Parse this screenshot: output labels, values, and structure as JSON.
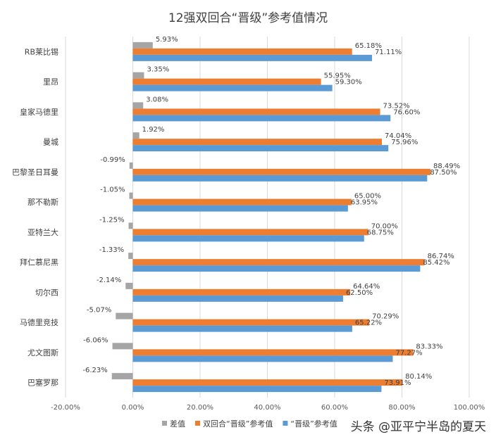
{
  "chart_data": {
    "type": "bar",
    "orientation": "horizontal",
    "title": "12强双回合“晋级”参考值情况",
    "categories": [
      "RB莱比锡",
      "里昂",
      "皇家马德里",
      "曼城",
      "巴黎圣日耳曼",
      "那不勒斯",
      "亚特兰大",
      "拜仁慕尼黑",
      "切尔西",
      "马德里竞技",
      "尤文图斯",
      "巴塞罗那"
    ],
    "series": [
      {
        "name": "差值",
        "color": "#a5a5a5",
        "values": [
          5.93,
          3.35,
          3.08,
          1.92,
          -0.99,
          -1.05,
          -1.25,
          -1.33,
          -2.14,
          -5.07,
          -6.06,
          -6.23
        ],
        "labels": [
          "5.93%",
          "3.35%",
          "3.08%",
          "1.92%",
          "-0.99%",
          "-1.05%",
          "-1.25%",
          "-1.33%",
          "-2.14%",
          "-5.07%",
          "-6.06%",
          "-6.23%"
        ]
      },
      {
        "name": "双回合“晋级”参考值",
        "color": "#ed7d31",
        "values": [
          65.18,
          55.95,
          73.52,
          74.04,
          88.49,
          65.0,
          70.0,
          86.74,
          64.64,
          70.29,
          83.33,
          80.14
        ],
        "labels": [
          "65.18%",
          "55.95%",
          "73.52%",
          "74.04%",
          "88.49%",
          "65.00%",
          "70.00%",
          "86.74%",
          "64.64%",
          "70.29%",
          "83.33%",
          "80.14%"
        ]
      },
      {
        "name": "“晋级”参考值",
        "color": "#5b9bd5",
        "values": [
          71.11,
          59.3,
          76.6,
          75.96,
          87.5,
          63.95,
          68.75,
          85.42,
          62.5,
          65.22,
          77.27,
          73.91
        ],
        "labels": [
          "71.11%",
          "59.30%",
          "76.60%",
          "75.96%",
          "87.50%",
          "63.95%",
          "68.75%",
          "85.42%",
          "62.50%",
          "65.22%",
          "77.27%",
          "73.91%"
        ]
      }
    ],
    "xlim": [
      -20,
      100
    ],
    "xticks": [
      -20,
      0,
      20,
      40,
      60,
      80,
      100
    ],
    "xtick_labels": [
      "-20.00%",
      "0.00%",
      "20.00%",
      "40.00%",
      "60.00%",
      "80.00%",
      "100.00%"
    ],
    "grid": true,
    "legend_position": "bottom"
  },
  "watermark": "头条 @亚平宁半岛的夏天"
}
